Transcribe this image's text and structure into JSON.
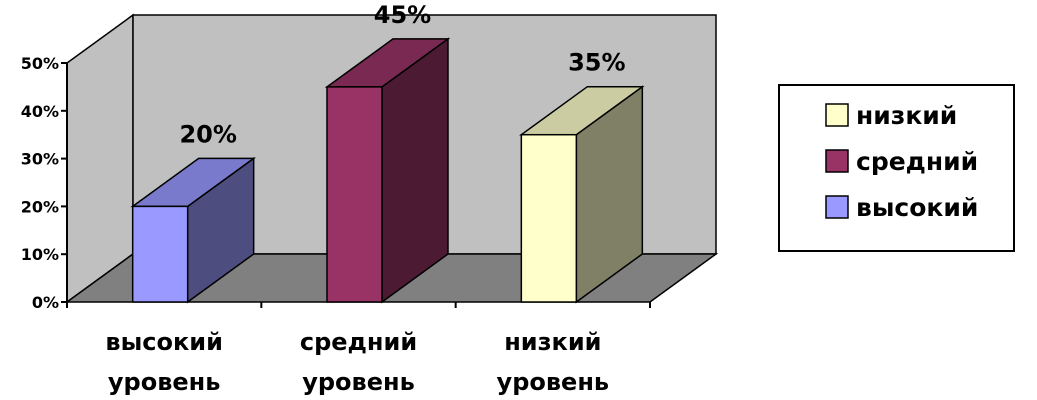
{
  "chart_data": {
    "type": "bar",
    "categories": [
      "высокий уровень",
      "средний уровень",
      "низкий уровень"
    ],
    "category_lines": [
      [
        "высокий",
        "уровень"
      ],
      [
        "средний",
        "уровень"
      ],
      [
        "низкий",
        "уровень"
      ]
    ],
    "values": [
      20,
      45,
      35
    ],
    "value_labels": [
      "20%",
      "45%",
      "35%"
    ],
    "yticks": [
      "0%",
      "10%",
      "20%",
      "30%",
      "40%",
      "50%"
    ],
    "ylim": [
      0,
      50
    ],
    "three_d": true,
    "legend": {
      "position": "right",
      "entries": [
        {
          "label": "низкий",
          "color": "#ffffcc"
        },
        {
          "label": "средний",
          "color": "#993366"
        },
        {
          "label": "высокий",
          "color": "#9999ff"
        }
      ]
    },
    "bar_colors": [
      "#9999ff",
      "#993366",
      "#ffffcc"
    ],
    "wall_color": "#c0c0c0",
    "floor_color": "#808080"
  }
}
